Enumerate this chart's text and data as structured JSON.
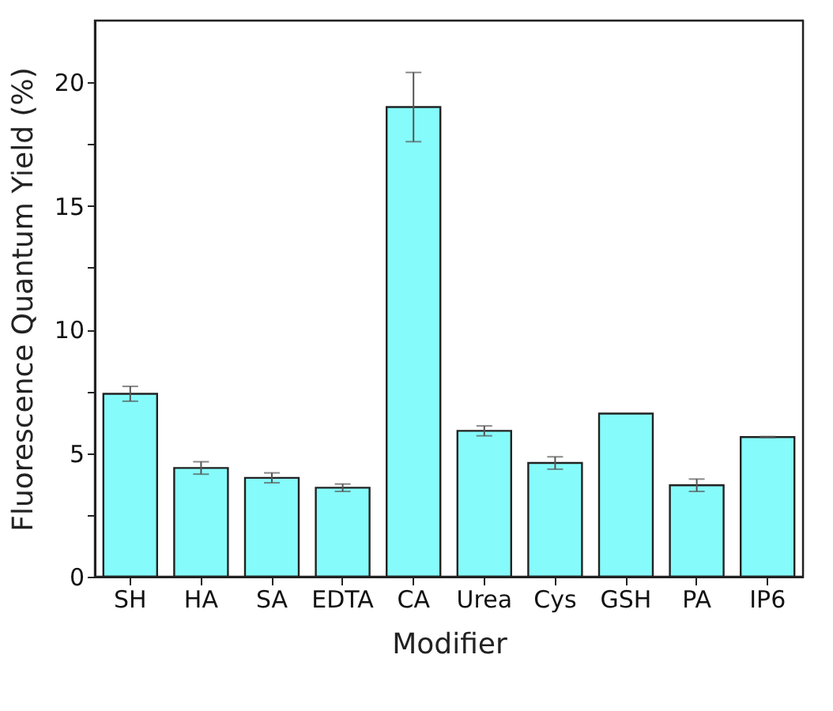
{
  "chart_data": {
    "type": "bar",
    "xlabel": "Modifier",
    "ylabel": "Fluorescence Quantum Yield (%)",
    "categories": [
      "SH",
      "HA",
      "SA",
      "EDTA",
      "CA",
      "Urea",
      "Cys",
      "GSH",
      "PA",
      "IP6"
    ],
    "values": [
      7.4,
      4.4,
      4.0,
      3.6,
      19.0,
      5.9,
      4.6,
      6.6,
      3.7,
      5.65
    ],
    "errors": [
      0.3,
      0.25,
      0.2,
      0.15,
      1.4,
      0.2,
      0.25,
      null,
      0.25,
      0.02
    ],
    "color": "#86fbfb",
    "ylim": [
      0,
      22.5
    ],
    "yticks": [
      0,
      {
        "value": 2.5,
        "label": null
      },
      5,
      {
        "value": 7.5,
        "label": null
      },
      10,
      {
        "value": 12.5,
        "label": null
      },
      15,
      {
        "value": 17.5,
        "label": null
      },
      20
    ],
    "grid": false
  }
}
